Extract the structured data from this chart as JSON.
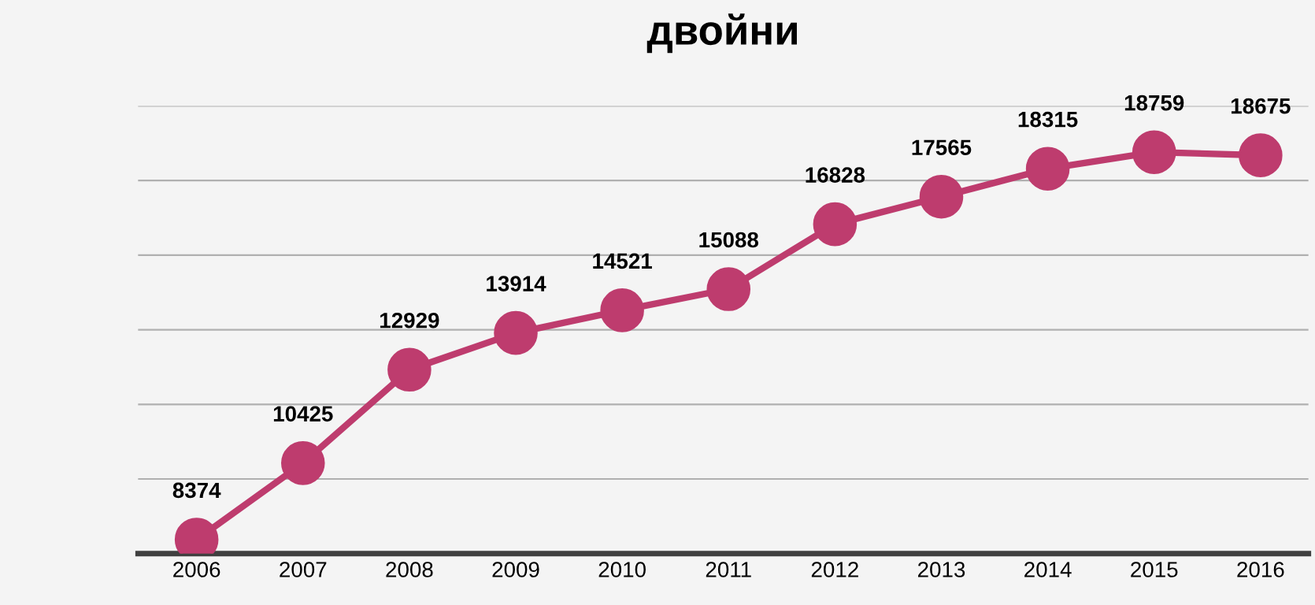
{
  "chart_data": {
    "type": "line",
    "title": "двойни",
    "categories": [
      "2006",
      "2007",
      "2008",
      "2009",
      "2010",
      "2011",
      "2012",
      "2013",
      "2014",
      "2015",
      "2016"
    ],
    "series": [
      {
        "color": "#be3c6e",
        "values": [
          8374,
          10425,
          12929,
          13914,
          14521,
          15088,
          16828,
          17565,
          18315,
          18759,
          18675
        ]
      }
    ],
    "ylim": [
      8000,
      20000
    ],
    "yticks": [
      {
        "value": 8000,
        "label": null
      },
      {
        "value": 10000,
        "label": null
      },
      {
        "value": 12000,
        "label": null
      },
      {
        "value": 14000,
        "label": null
      },
      {
        "value": 16000,
        "label": null
      },
      {
        "value": 18000,
        "label": null
      },
      {
        "value": 20000,
        "label": null
      }
    ],
    "tick_labels": "x",
    "grid": "y",
    "marker": "circle",
    "line_style": "solid",
    "data_labels": true,
    "legend": false
  }
}
